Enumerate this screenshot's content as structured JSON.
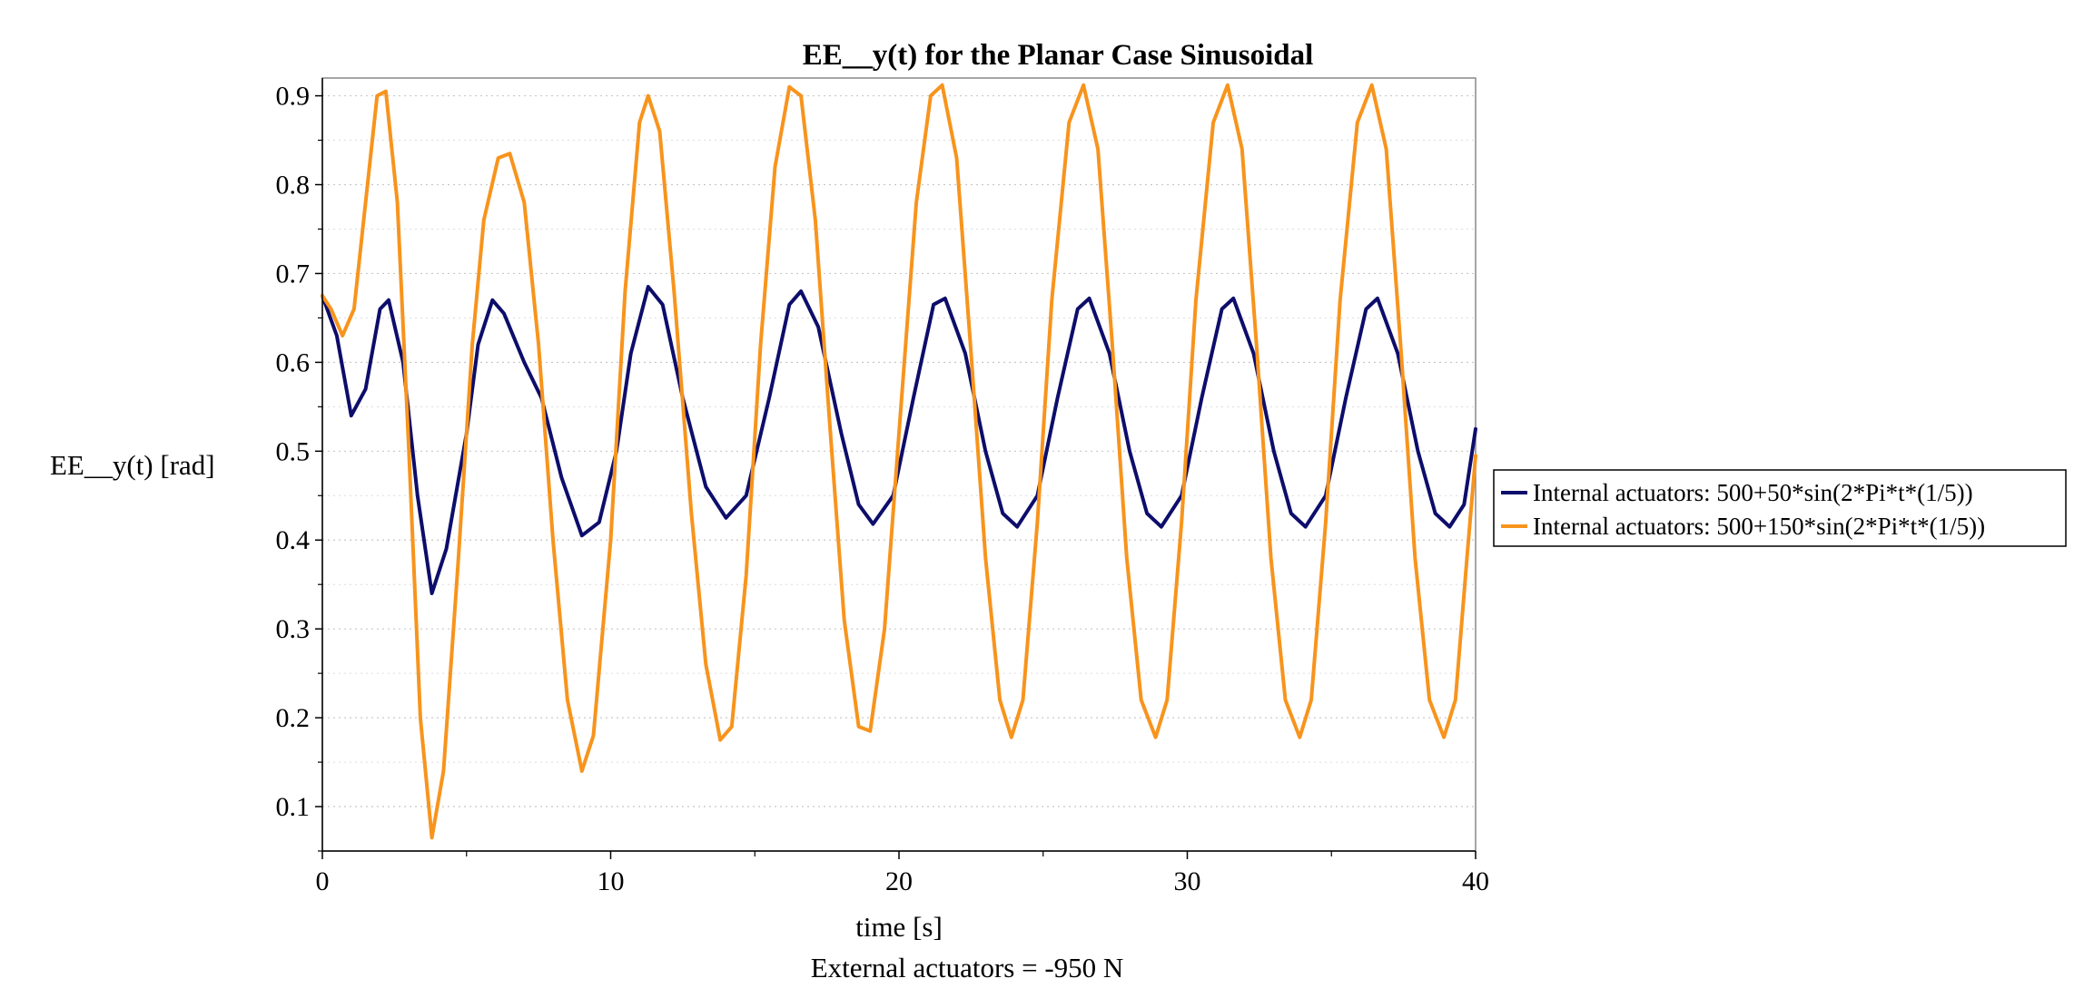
{
  "chart_data": {
    "type": "line",
    "title": "EE__y(t) for the Planar Case Sinusoidal",
    "xlabel": "time [s]",
    "ylabel": "EE__y(t) [rad]",
    "subtitle": "External actuators = -950 N",
    "xlim": [
      0,
      40
    ],
    "ylim": [
      0.05,
      0.92
    ],
    "xticks": [
      0,
      10,
      20,
      30,
      40
    ],
    "yticks": [
      0.1,
      0.2,
      0.3,
      0.4,
      0.5,
      0.6,
      0.7,
      0.8,
      0.9
    ],
    "grid": true,
    "legend_position": "right",
    "series": [
      {
        "name": "Internal actuators: 500+50*sin(2*Pi*t*(1/5))",
        "color": "#0d0d6b",
        "points": [
          [
            0,
            0.675
          ],
          [
            0.5,
            0.63
          ],
          [
            1,
            0.54
          ],
          [
            1.5,
            0.57
          ],
          [
            2,
            0.66
          ],
          [
            2.3,
            0.67
          ],
          [
            2.8,
            0.6
          ],
          [
            3.3,
            0.45
          ],
          [
            3.8,
            0.34
          ],
          [
            4.3,
            0.39
          ],
          [
            5,
            0.52
          ],
          [
            5.4,
            0.62
          ],
          [
            5.9,
            0.67
          ],
          [
            6.3,
            0.655
          ],
          [
            7,
            0.6
          ],
          [
            7.6,
            0.56
          ],
          [
            8.3,
            0.47
          ],
          [
            9,
            0.405
          ],
          [
            9.6,
            0.42
          ],
          [
            10.2,
            0.5
          ],
          [
            10.7,
            0.61
          ],
          [
            11.3,
            0.685
          ],
          [
            11.8,
            0.665
          ],
          [
            12.5,
            0.56
          ],
          [
            13.3,
            0.46
          ],
          [
            14,
            0.425
          ],
          [
            14.7,
            0.45
          ],
          [
            15.5,
            0.56
          ],
          [
            16.2,
            0.665
          ],
          [
            16.6,
            0.68
          ],
          [
            17.2,
            0.64
          ],
          [
            18,
            0.52
          ],
          [
            18.6,
            0.44
          ],
          [
            19.1,
            0.418
          ],
          [
            19.8,
            0.45
          ],
          [
            20.5,
            0.56
          ],
          [
            21.2,
            0.665
          ],
          [
            21.6,
            0.672
          ],
          [
            22.3,
            0.61
          ],
          [
            23,
            0.5
          ],
          [
            23.6,
            0.43
          ],
          [
            24.1,
            0.415
          ],
          [
            24.8,
            0.45
          ],
          [
            25.5,
            0.56
          ],
          [
            26.2,
            0.66
          ],
          [
            26.6,
            0.672
          ],
          [
            27.3,
            0.61
          ],
          [
            28,
            0.5
          ],
          [
            28.6,
            0.43
          ],
          [
            29.1,
            0.415
          ],
          [
            29.8,
            0.45
          ],
          [
            30.5,
            0.56
          ],
          [
            31.2,
            0.66
          ],
          [
            31.6,
            0.672
          ],
          [
            32.3,
            0.61
          ],
          [
            33,
            0.5
          ],
          [
            33.6,
            0.43
          ],
          [
            34.1,
            0.415
          ],
          [
            34.8,
            0.45
          ],
          [
            35.5,
            0.56
          ],
          [
            36.2,
            0.66
          ],
          [
            36.6,
            0.672
          ],
          [
            37.3,
            0.61
          ],
          [
            38,
            0.5
          ],
          [
            38.6,
            0.43
          ],
          [
            39.1,
            0.415
          ],
          [
            39.6,
            0.44
          ],
          [
            40,
            0.525
          ]
        ]
      },
      {
        "name": "Internal actuators: 500+150*sin(2*Pi*t*(1/5))",
        "color": "#f7941d",
        "points": [
          [
            0,
            0.675
          ],
          [
            0.3,
            0.66
          ],
          [
            0.7,
            0.63
          ],
          [
            1.1,
            0.66
          ],
          [
            1.5,
            0.78
          ],
          [
            1.9,
            0.9
          ],
          [
            2.2,
            0.905
          ],
          [
            2.6,
            0.78
          ],
          [
            3,
            0.5
          ],
          [
            3.4,
            0.2
          ],
          [
            3.8,
            0.065
          ],
          [
            4.2,
            0.14
          ],
          [
            4.7,
            0.37
          ],
          [
            5.2,
            0.62
          ],
          [
            5.6,
            0.76
          ],
          [
            6.1,
            0.83
          ],
          [
            6.5,
            0.835
          ],
          [
            7,
            0.78
          ],
          [
            7.5,
            0.62
          ],
          [
            8,
            0.4
          ],
          [
            8.5,
            0.22
          ],
          [
            9,
            0.14
          ],
          [
            9.4,
            0.18
          ],
          [
            10,
            0.4
          ],
          [
            10.5,
            0.68
          ],
          [
            11,
            0.87
          ],
          [
            11.3,
            0.9
          ],
          [
            11.7,
            0.86
          ],
          [
            12.2,
            0.68
          ],
          [
            12.8,
            0.43
          ],
          [
            13.3,
            0.26
          ],
          [
            13.8,
            0.175
          ],
          [
            14.2,
            0.19
          ],
          [
            14.7,
            0.36
          ],
          [
            15.2,
            0.62
          ],
          [
            15.7,
            0.82
          ],
          [
            16.2,
            0.91
          ],
          [
            16.6,
            0.9
          ],
          [
            17.1,
            0.76
          ],
          [
            17.6,
            0.53
          ],
          [
            18.1,
            0.31
          ],
          [
            18.6,
            0.19
          ],
          [
            19,
            0.185
          ],
          [
            19.5,
            0.3
          ],
          [
            20,
            0.52
          ],
          [
            20.6,
            0.78
          ],
          [
            21.1,
            0.9
          ],
          [
            21.5,
            0.912
          ],
          [
            22,
            0.83
          ],
          [
            22.5,
            0.61
          ],
          [
            23,
            0.38
          ],
          [
            23.5,
            0.22
          ],
          [
            23.9,
            0.178
          ],
          [
            24.3,
            0.22
          ],
          [
            24.8,
            0.42
          ],
          [
            25.3,
            0.67
          ],
          [
            25.9,
            0.87
          ],
          [
            26.4,
            0.912
          ],
          [
            26.9,
            0.84
          ],
          [
            27.4,
            0.62
          ],
          [
            27.9,
            0.38
          ],
          [
            28.4,
            0.22
          ],
          [
            28.9,
            0.178
          ],
          [
            29.3,
            0.22
          ],
          [
            29.8,
            0.42
          ],
          [
            30.3,
            0.67
          ],
          [
            30.9,
            0.87
          ],
          [
            31.4,
            0.912
          ],
          [
            31.9,
            0.84
          ],
          [
            32.4,
            0.62
          ],
          [
            32.9,
            0.38
          ],
          [
            33.4,
            0.22
          ],
          [
            33.9,
            0.178
          ],
          [
            34.3,
            0.22
          ],
          [
            34.8,
            0.42
          ],
          [
            35.3,
            0.67
          ],
          [
            35.9,
            0.87
          ],
          [
            36.4,
            0.912
          ],
          [
            36.9,
            0.84
          ],
          [
            37.4,
            0.62
          ],
          [
            37.9,
            0.38
          ],
          [
            38.4,
            0.22
          ],
          [
            38.9,
            0.178
          ],
          [
            39.3,
            0.22
          ],
          [
            39.7,
            0.38
          ],
          [
            40,
            0.495
          ]
        ]
      }
    ]
  }
}
